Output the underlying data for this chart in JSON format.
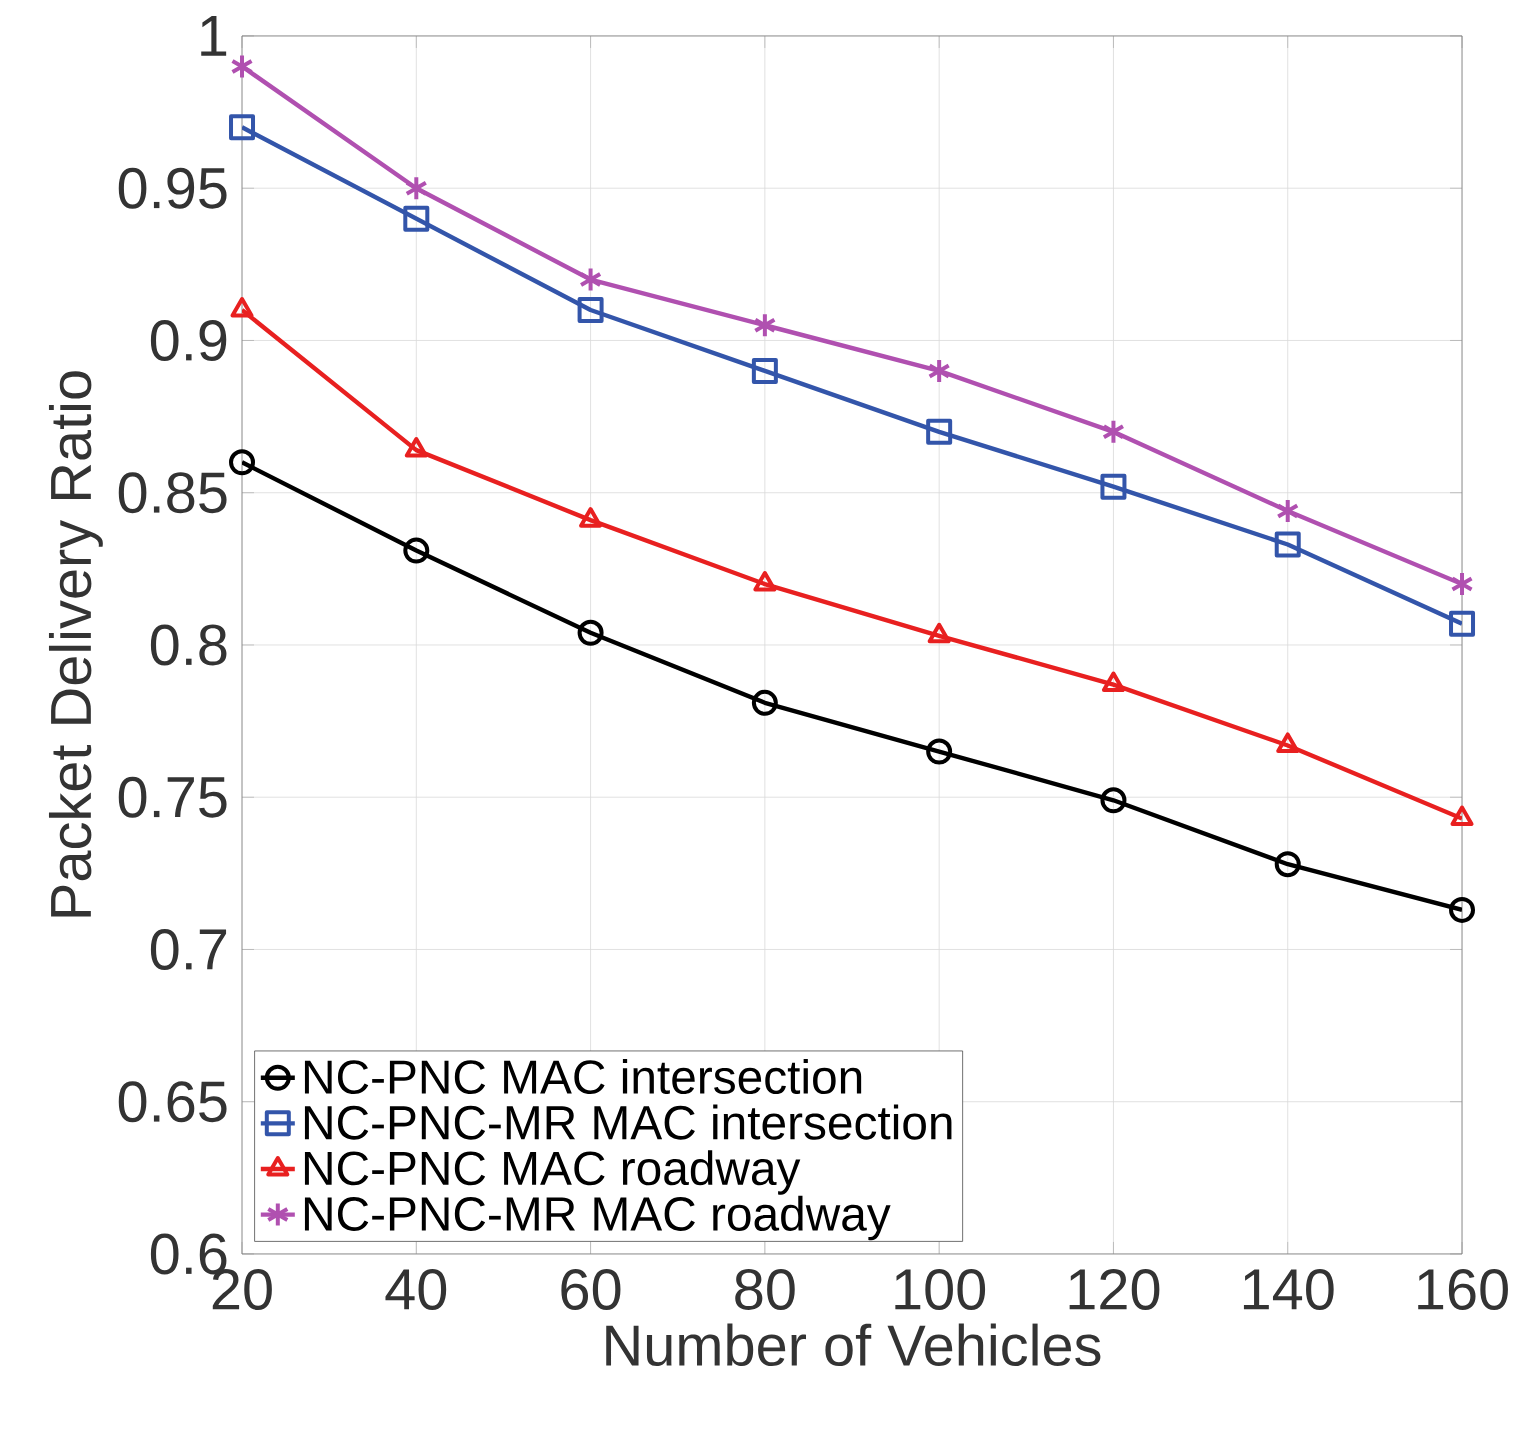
{
  "chart_data": {
    "type": "line",
    "xlabel": "Number of Vehicles",
    "ylabel": "Packet Delivery Ratio",
    "x": [
      20,
      40,
      60,
      80,
      100,
      120,
      140,
      160
    ],
    "xlim": [
      20,
      160
    ],
    "xticks": [
      20,
      40,
      60,
      80,
      100,
      120,
      140,
      160
    ],
    "ylim": [
      0.6,
      1
    ],
    "yticks": [
      0.6,
      0.65,
      0.7,
      0.75,
      0.8,
      0.85,
      0.9,
      0.95,
      1
    ],
    "grid": true,
    "legend": "bottom left",
    "line_style": "solid",
    "series": [
      {
        "name": "NC-PNC MAC intersection",
        "color": "#000000",
        "marker": "circle",
        "values": [
          0.86,
          0.831,
          0.804,
          0.781,
          0.765,
          0.749,
          0.728,
          0.713
        ]
      },
      {
        "name": "NC-PNC-MR MAC intersection",
        "color": "#3355aa",
        "marker": "square",
        "values": [
          0.97,
          0.94,
          0.91,
          0.89,
          0.87,
          0.852,
          0.833,
          0.807
        ]
      },
      {
        "name": "NC-PNC MAC roadway",
        "color": "#e82020",
        "marker": "triangle",
        "values": [
          0.91,
          0.864,
          0.841,
          0.82,
          0.803,
          0.787,
          0.767,
          0.743
        ]
      },
      {
        "name": "NC-PNC-MR MAC roadway",
        "color": "#b050b0",
        "marker": "cross",
        "values": [
          0.99,
          0.95,
          0.92,
          0.905,
          0.89,
          0.87,
          0.844,
          0.82
        ]
      }
    ]
  }
}
